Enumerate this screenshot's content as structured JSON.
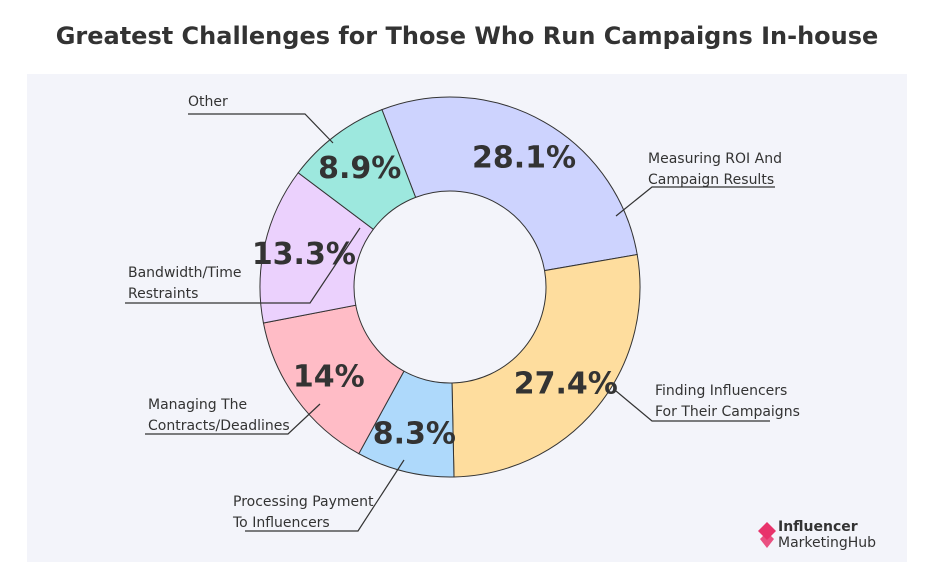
{
  "chart_data": {
    "type": "pie",
    "title": "Greatest Challenges for Those Who Run Campaigns In-house",
    "slices": [
      {
        "label": "Measuring ROI And Campaign Results",
        "label_lines": [
          "Measuring ROI And",
          "Campaign Results"
        ],
        "value": 28.1,
        "display": "28.1%",
        "color": "#cdd3fe"
      },
      {
        "label": "Finding Influencers For Their Campaigns",
        "label_lines": [
          "Finding Influencers",
          "For Their Campaigns"
        ],
        "value": 27.4,
        "display": "27.4%",
        "color": "#fedd9e"
      },
      {
        "label": "Processing Payment To Influencers",
        "label_lines": [
          "Processing Payment",
          "To Influencers"
        ],
        "value": 8.3,
        "display": "8.3%",
        "color": "#aed9fb"
      },
      {
        "label": "Managing The Contracts/Deadlines",
        "label_lines": [
          "Managing The",
          "Contracts/Deadlines"
        ],
        "value": 14,
        "display": "14%",
        "color": "#ffbcc6"
      },
      {
        "label": "Bandwidth/Time Restraints",
        "label_lines": [
          "Bandwidth/Time",
          "Restraints"
        ],
        "value": 13.3,
        "display": "13.3%",
        "color": "#ebd1fd"
      },
      {
        "label": "Other",
        "label_lines": [
          "Other"
        ],
        "value": 8.9,
        "display": "8.9%",
        "color": "#9de8de"
      }
    ]
  },
  "branding": {
    "logo_line1": "Influencer",
    "logo_line2": "MarketingHub",
    "logo_color": "#e8336b"
  }
}
